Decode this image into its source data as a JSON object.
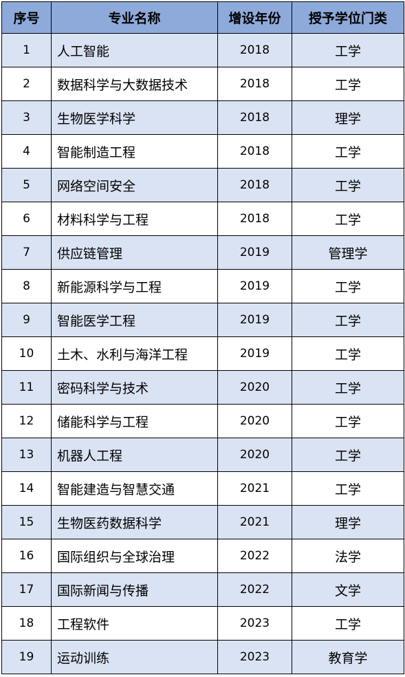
{
  "table": {
    "headers": {
      "no": "序号",
      "name": "专业名称",
      "year": "增设年份",
      "category": "授予学位门类"
    },
    "rows": [
      {
        "no": "1",
        "name": "人工智能",
        "year": "2018",
        "category": "工学"
      },
      {
        "no": "2",
        "name": "数据科学与大数据技术",
        "year": "2018",
        "category": "工学"
      },
      {
        "no": "3",
        "name": "生物医学科学",
        "year": "2018",
        "category": "理学"
      },
      {
        "no": "4",
        "name": "智能制造工程",
        "year": "2018",
        "category": "工学"
      },
      {
        "no": "5",
        "name": "网络空间安全",
        "year": "2018",
        "category": "工学"
      },
      {
        "no": "6",
        "name": "材料科学与工程",
        "year": "2018",
        "category": "工学"
      },
      {
        "no": "7",
        "name": "供应链管理",
        "year": "2019",
        "category": "管理学"
      },
      {
        "no": "8",
        "name": "新能源科学与工程",
        "year": "2019",
        "category": "工学"
      },
      {
        "no": "9",
        "name": "智能医学工程",
        "year": "2019",
        "category": "工学"
      },
      {
        "no": "10",
        "name": "土木、水利与海洋工程",
        "year": "2019",
        "category": "工学"
      },
      {
        "no": "11",
        "name": "密码科学与技术",
        "year": "2020",
        "category": "工学"
      },
      {
        "no": "12",
        "name": "储能科学与工程",
        "year": "2020",
        "category": "工学"
      },
      {
        "no": "13",
        "name": "机器人工程",
        "year": "2020",
        "category": "工学"
      },
      {
        "no": "14",
        "name": "智能建造与智慧交通",
        "year": "2021",
        "category": "工学"
      },
      {
        "no": "15",
        "name": "生物医药数据科学",
        "year": "2021",
        "category": "理学"
      },
      {
        "no": "16",
        "name": "国际组织与全球治理",
        "year": "2022",
        "category": "法学"
      },
      {
        "no": "17",
        "name": "国际新闻与传播",
        "year": "2022",
        "category": "文学"
      },
      {
        "no": "18",
        "name": "工程软件",
        "year": "2023",
        "category": "工学"
      },
      {
        "no": "19",
        "name": "运动训练",
        "year": "2023",
        "category": "教育学"
      }
    ]
  },
  "colors": {
    "header_bg": "#8eaadb",
    "stripe_bg": "#dae3f3",
    "border": "#000000"
  }
}
